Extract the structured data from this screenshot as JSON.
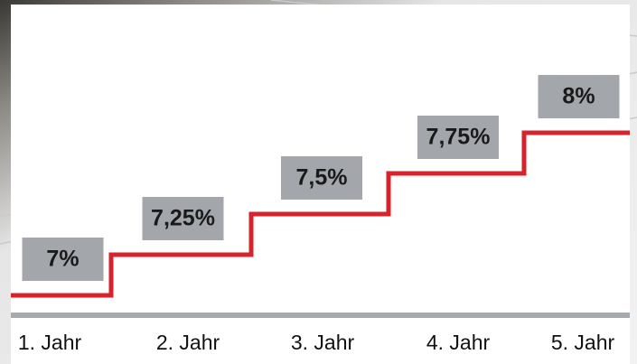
{
  "chart_data": {
    "type": "step",
    "categories": [
      "1. Jahr",
      "2. Jahr",
      "3. Jahr",
      "4. Jahr",
      "5. Jahr"
    ],
    "values": [
      7,
      7.25,
      7.5,
      7.75,
      8
    ],
    "value_labels": [
      "7%",
      "7,25%",
      "7,5%",
      "7,75%",
      "8%"
    ],
    "color": "#d7242c"
  }
}
